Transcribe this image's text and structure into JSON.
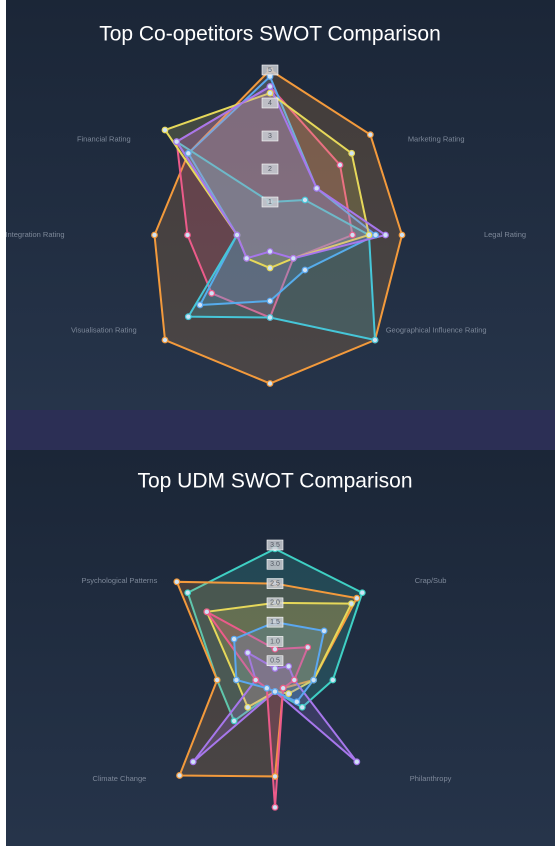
{
  "chart_data": [
    {
      "type": "radar",
      "title": "Top Co-opetitors SWOT Comparison",
      "categories": [
        null,
        "Marketing Rating",
        "Legal Rating",
        "Geographical Influence Rating",
        null,
        "Visualisation Rating",
        "Integration Rating",
        "Financial Rating"
      ],
      "rlim": [
        0,
        5
      ],
      "rticks": [
        1,
        2,
        3,
        4,
        5
      ],
      "series": [
        {
          "color": "#f39a3c",
          "values": [
            5,
            4.3,
            4.0,
            4.5,
            4.5,
            4.5,
            3.5,
            3.5
          ]
        },
        {
          "color": "#ec5b8a",
          "values": [
            4.5,
            3,
            2.5,
            1,
            2.5,
            2.5,
            2.5,
            4
          ]
        },
        {
          "color": "#5aa7f0",
          "values": [
            4.8,
            2,
            3.2,
            1.5,
            2,
            3,
            1,
            3.5
          ]
        },
        {
          "color": "#46c6d8",
          "values": [
            1,
            1.5,
            3,
            4.5,
            2.5,
            3.5,
            1,
            4
          ]
        },
        {
          "color": "#e6d85a",
          "values": [
            4.3,
            3.5,
            3,
            1,
            1,
            1,
            1,
            4.5
          ]
        },
        {
          "color": "#a777ec",
          "values": [
            4.5,
            2,
            3.5,
            1,
            0.5,
            1,
            1,
            4
          ]
        }
      ]
    },
    {
      "type": "radar",
      "title": "Top UDM SWOT Comparison",
      "categories": [
        null,
        "Crap/Sub",
        null,
        "Philanthropy",
        null,
        "Climate Change",
        null,
        "Psychological Patterns"
      ],
      "rlim": [
        0,
        3.5
      ],
      "rticks": [
        {
          "value": 0.5,
          "label": "0.5"
        },
        {
          "value": 1,
          "label": "1.0"
        },
        {
          "value": 1.5,
          "label": "1.5"
        },
        {
          "value": 2,
          "label": "2.0"
        },
        {
          "value": 2.5,
          "label": "2.5"
        },
        {
          "value": 3,
          "label": "3.0"
        },
        {
          "value": 3.5,
          "label": "3.5"
        }
      ],
      "series": [
        {
          "color": "#3fd0c4",
          "values": [
            3.4,
            3.2,
            1.5,
            1,
            0.3,
            1.5,
            1.5,
            3.2
          ]
        },
        {
          "color": "#f39a3c",
          "values": [
            2.5,
            3,
            1,
            0.3,
            2.5,
            3.5,
            1.5,
            3.6
          ]
        },
        {
          "color": "#e6d85a",
          "values": [
            2,
            2.8,
            1,
            0.5,
            0.3,
            1,
            1,
            2.5
          ]
        },
        {
          "color": "#a777ec",
          "values": [
            0.3,
            0.5,
            0.5,
            3,
            0.3,
            3,
            0.5,
            1
          ]
        },
        {
          "color": "#ec5b8a",
          "values": [
            0.8,
            1.2,
            0.5,
            0.3,
            3.3,
            0.3,
            0.5,
            2.5
          ]
        },
        {
          "color": "#5aa7f0",
          "values": [
            1.5,
            1.8,
            1,
            0.8,
            0.3,
            0.3,
            1,
            1.5
          ]
        }
      ]
    }
  ]
}
